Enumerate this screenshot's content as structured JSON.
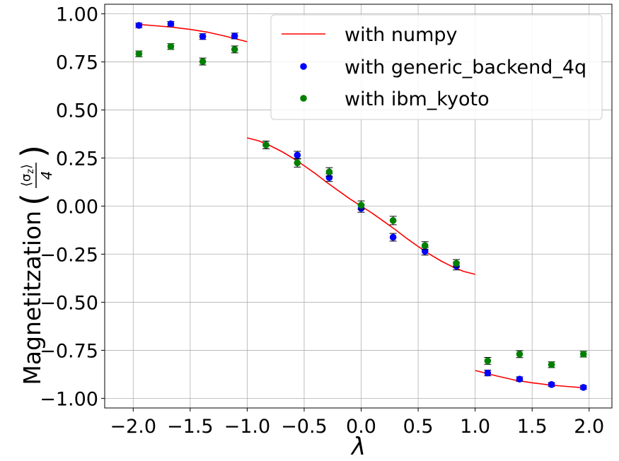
{
  "chart_data": {
    "type": "scatter",
    "xlabel": "λ",
    "ylabel": {
      "prefix": "Magnetitzation",
      "numerator": "⟨σ",
      "numerator_sub": "z",
      "numerator_end": "⟩",
      "denominator": "4"
    },
    "xlim": [
      -2.25,
      2.2
    ],
    "ylim": [
      -1.05,
      1.05
    ],
    "xticks": [
      -2.0,
      -1.5,
      -1.0,
      -0.5,
      0.0,
      0.5,
      1.0,
      1.5,
      2.0
    ],
    "xtick_labels": [
      "−2.0",
      "−1.5",
      "−1.0",
      "−0.5",
      "0.0",
      "0.5",
      "1.0",
      "1.5",
      "2.0"
    ],
    "yticks": [
      1.0,
      0.75,
      0.5,
      0.25,
      0.0,
      -0.25,
      -0.5,
      -0.75,
      -1.0
    ],
    "ytick_labels": [
      "1.00",
      "0.75",
      "0.50",
      "0.25",
      "0.00",
      "−0.25",
      "−0.50",
      "−0.75",
      "−1.00"
    ],
    "grid": true,
    "legend_position": "top-right",
    "series": [
      {
        "name": "with numpy",
        "kind": "line",
        "color": "#ff0000",
        "segments": [
          {
            "x": [
              -1.95,
              -1.8,
              -1.65,
              -1.5,
              -1.35,
              -1.2,
              -1.0
            ],
            "y": [
              0.945,
              0.938,
              0.93,
              0.919,
              0.905,
              0.885,
              0.855
            ]
          },
          {
            "x": [
              -1.0,
              -0.9,
              -0.8,
              -0.7,
              -0.6,
              -0.5,
              -0.4,
              -0.3,
              -0.2,
              -0.1,
              0.0,
              0.1,
              0.2,
              0.3,
              0.4,
              0.5,
              0.6,
              0.7,
              0.8,
              0.9,
              1.0
            ],
            "y": [
              0.355,
              0.34,
              0.315,
              0.285,
              0.25,
              0.21,
              0.168,
              0.123,
              0.08,
              0.038,
              0.0,
              -0.038,
              -0.08,
              -0.123,
              -0.168,
              -0.21,
              -0.25,
              -0.285,
              -0.315,
              -0.34,
              -0.355
            ]
          },
          {
            "x": [
              1.0,
              1.2,
              1.35,
              1.5,
              1.65,
              1.8,
              1.95
            ],
            "y": [
              -0.855,
              -0.885,
              -0.905,
              -0.919,
              -0.93,
              -0.938,
              -0.945
            ]
          }
        ]
      },
      {
        "name": "with generic_backend_4q",
        "kind": "errorbar",
        "color": "#0000ff",
        "points": [
          {
            "x": -1.95,
            "y": 0.94,
            "err": 0.012
          },
          {
            "x": -1.67,
            "y": 0.948,
            "err": 0.012
          },
          {
            "x": -1.39,
            "y": 0.882,
            "err": 0.015
          },
          {
            "x": -1.11,
            "y": 0.885,
            "err": 0.015
          },
          {
            "x": -0.835,
            "y": 0.318,
            "err": 0.02
          },
          {
            "x": -0.56,
            "y": 0.265,
            "err": 0.02
          },
          {
            "x": -0.28,
            "y": 0.148,
            "err": 0.02
          },
          {
            "x": 0.0,
            "y": -0.012,
            "err": 0.02
          },
          {
            "x": 0.28,
            "y": -0.162,
            "err": 0.02
          },
          {
            "x": 0.56,
            "y": -0.235,
            "err": 0.02
          },
          {
            "x": 0.835,
            "y": -0.312,
            "err": 0.02
          },
          {
            "x": 1.11,
            "y": -0.868,
            "err": 0.015
          },
          {
            "x": 1.39,
            "y": -0.9,
            "err": 0.012
          },
          {
            "x": 1.67,
            "y": -0.928,
            "err": 0.01
          },
          {
            "x": 1.95,
            "y": -0.943,
            "err": 0.01
          }
        ]
      },
      {
        "name": "with ibm_kyoto",
        "kind": "errorbar",
        "color": "#008000",
        "points": [
          {
            "x": -1.95,
            "y": 0.792,
            "err": 0.015
          },
          {
            "x": -1.67,
            "y": 0.83,
            "err": 0.015
          },
          {
            "x": -1.39,
            "y": 0.752,
            "err": 0.018
          },
          {
            "x": -1.11,
            "y": 0.815,
            "err": 0.018
          },
          {
            "x": -0.835,
            "y": 0.318,
            "err": 0.02
          },
          {
            "x": -0.56,
            "y": 0.225,
            "err": 0.022
          },
          {
            "x": -0.28,
            "y": 0.178,
            "err": 0.022
          },
          {
            "x": 0.0,
            "y": 0.005,
            "err": 0.022
          },
          {
            "x": 0.28,
            "y": -0.075,
            "err": 0.022
          },
          {
            "x": 0.56,
            "y": -0.205,
            "err": 0.02
          },
          {
            "x": 0.835,
            "y": -0.298,
            "err": 0.02
          },
          {
            "x": 1.11,
            "y": -0.805,
            "err": 0.018
          },
          {
            "x": 1.39,
            "y": -0.77,
            "err": 0.018
          },
          {
            "x": 1.67,
            "y": -0.825,
            "err": 0.015
          },
          {
            "x": 1.95,
            "y": -0.77,
            "err": 0.015
          }
        ]
      }
    ]
  }
}
